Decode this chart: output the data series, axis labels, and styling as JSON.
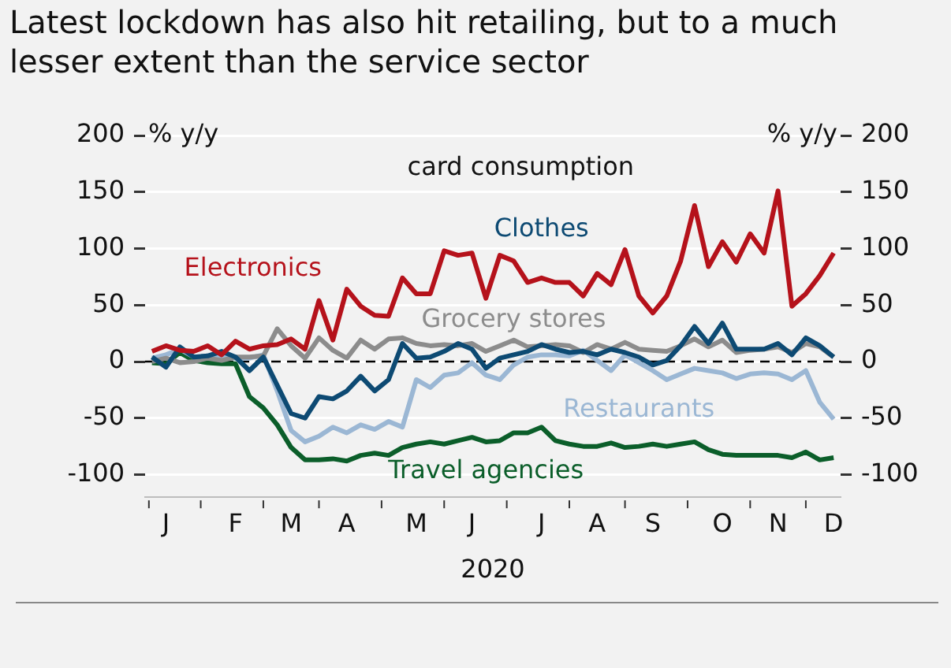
{
  "chart_data": {
    "type": "line",
    "title": "Latest lockdown has also hit retailing, but to a much lesser extent than the service sector",
    "subtitle": "card consumption",
    "xlabel": "2020",
    "ylabel": "% y/y",
    "y2label": "% y/y",
    "categories": [
      null,
      "J",
      null,
      null,
      null,
      null,
      "F",
      null,
      null,
      null,
      "M",
      null,
      null,
      null,
      "A",
      null,
      null,
      null,
      null,
      "M",
      null,
      null,
      null,
      "J",
      null,
      null,
      null,
      null,
      "J",
      null,
      null,
      null,
      "A",
      null,
      null,
      null,
      "S",
      null,
      null,
      null,
      null,
      "O",
      null,
      null,
      null,
      "N",
      null,
      null,
      null,
      "D"
    ],
    "series": [
      {
        "name": "Electronics",
        "color": "#b5121b",
        "values": [
          9,
          14,
          10,
          9,
          14,
          6,
          18,
          11,
          14,
          15,
          20,
          11,
          54,
          19,
          64,
          49,
          41,
          40,
          74,
          60,
          60,
          98,
          94,
          96,
          56,
          94,
          89,
          70,
          74,
          70,
          70,
          58,
          78,
          68,
          99,
          58,
          43,
          58,
          89,
          138,
          84,
          106,
          88,
          113,
          96,
          151,
          49,
          60,
          76,
          96
        ]
      },
      {
        "name": "Clothes",
        "color": "#0d4a73",
        "values": [
          4,
          -5,
          13,
          4,
          5,
          9,
          4,
          -8,
          4,
          -21,
          -46,
          -50,
          -31,
          -33,
          -26,
          -13,
          -26,
          -16,
          16,
          3,
          4,
          9,
          16,
          11,
          -6,
          3,
          6,
          9,
          15,
          11,
          8,
          9,
          6,
          11,
          8,
          4,
          -3,
          1,
          14,
          31,
          16,
          34,
          11,
          11,
          11,
          16,
          6,
          21,
          14,
          4
        ]
      },
      {
        "name": "Grocery stores",
        "color": "#8c8c8c",
        "values": [
          0,
          3,
          -1,
          0,
          3,
          1,
          4,
          4,
          5,
          29,
          14,
          3,
          21,
          10,
          3,
          19,
          11,
          20,
          21,
          16,
          14,
          15,
          14,
          16,
          9,
          14,
          19,
          13,
          14,
          15,
          14,
          8,
          15,
          11,
          17,
          11,
          10,
          9,
          14,
          20,
          13,
          19,
          8,
          10,
          11,
          13,
          8,
          16,
          13,
          4
        ]
      },
      {
        "name": "Restaurants",
        "color": "#9bb7d4",
        "values": [
          3,
          6,
          11,
          4,
          5,
          4,
          3,
          3,
          6,
          -26,
          -61,
          -71,
          -66,
          -58,
          -63,
          -56,
          -60,
          -53,
          -58,
          -16,
          -23,
          -12,
          -10,
          -1,
          -12,
          -16,
          -3,
          4,
          6,
          6,
          5,
          10,
          1,
          -8,
          6,
          -1,
          -8,
          -16,
          -11,
          -6,
          -8,
          -10,
          -15,
          -11,
          -10,
          -11,
          -16,
          -8,
          -36,
          -51
        ]
      },
      {
        "name": "Travel agencies",
        "color": "#0b5e2a",
        "values": [
          -1,
          -2,
          8,
          1,
          -1,
          -2,
          -2,
          -31,
          -41,
          -56,
          -76,
          -87,
          -87,
          -86,
          -88,
          -83,
          -81,
          -83,
          -76,
          -73,
          -71,
          -73,
          -70,
          -67,
          -71,
          -70,
          -63,
          -63,
          -58,
          -70,
          -73,
          -75,
          -75,
          -72,
          -76,
          -75,
          -73,
          -75,
          -73,
          -71,
          -78,
          -82,
          -83,
          -83,
          -83,
          -83,
          -85,
          -80,
          -87,
          -85
        ]
      }
    ],
    "ylim": [
      -120,
      200
    ],
    "yticks": [
      -100,
      -50,
      0,
      50,
      100,
      150,
      200
    ],
    "y2lim": [
      -120,
      200
    ],
    "y2ticks": [
      -100,
      -50,
      0,
      50,
      100,
      150,
      200
    ],
    "ref_lines": [
      {
        "axis": "y",
        "value": 0,
        "color": "#000000",
        "line_style": "dashed"
      }
    ],
    "grid": "y",
    "legend": false,
    "marker": "none",
    "line_style": "solid"
  }
}
